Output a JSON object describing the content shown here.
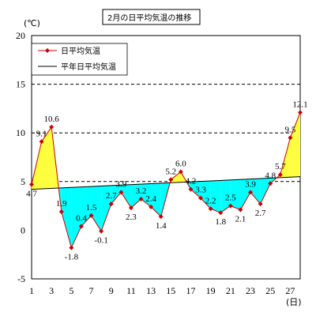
{
  "chart_data": {
    "type": "line",
    "title": "2月の日平均気温の推移",
    "ylabel": "(℃)",
    "xlabel": "(日)",
    "ylim": [
      -5,
      20
    ],
    "yticks": [
      -5,
      0,
      5,
      10,
      15,
      20
    ],
    "xlim": [
      1,
      28
    ],
    "xticks": [
      1,
      3,
      5,
      7,
      9,
      11,
      13,
      15,
      17,
      19,
      21,
      23,
      25,
      27
    ],
    "grid": "horizontal dashed at 5, 10, 15",
    "legend_position": "top-left",
    "fill_above_color": "#ffff40",
    "fill_below_color": "#00ffff",
    "series": [
      {
        "name": "日平均気温",
        "color": "#cc0000",
        "marker": "diamond",
        "x": [
          1,
          2,
          3,
          4,
          5,
          6,
          7,
          8,
          9,
          10,
          11,
          12,
          13,
          14,
          15,
          16,
          17,
          18,
          19,
          20,
          21,
          22,
          23,
          24,
          25,
          26,
          27,
          28
        ],
        "values": [
          4.7,
          9.1,
          10.6,
          1.9,
          -1.8,
          0.4,
          1.5,
          -0.1,
          2.7,
          3.9,
          2.3,
          3.2,
          2.4,
          1.4,
          5.2,
          6.0,
          4.2,
          3.3,
          2.2,
          1.8,
          2.5,
          2.1,
          3.9,
          2.7,
          4.8,
          5.7,
          9.5,
          12.1
        ],
        "labeled_x": [
          1,
          2,
          3,
          4,
          5,
          6,
          7,
          8,
          9,
          10,
          11,
          12,
          13,
          14,
          15,
          16,
          17,
          18,
          19,
          20,
          21,
          22,
          23,
          24,
          25,
          26,
          27,
          28
        ]
      },
      {
        "name": "平年日平均気温",
        "color": "#000000",
        "x": [
          1,
          28
        ],
        "values": [
          4.2,
          5.5
        ]
      }
    ]
  }
}
